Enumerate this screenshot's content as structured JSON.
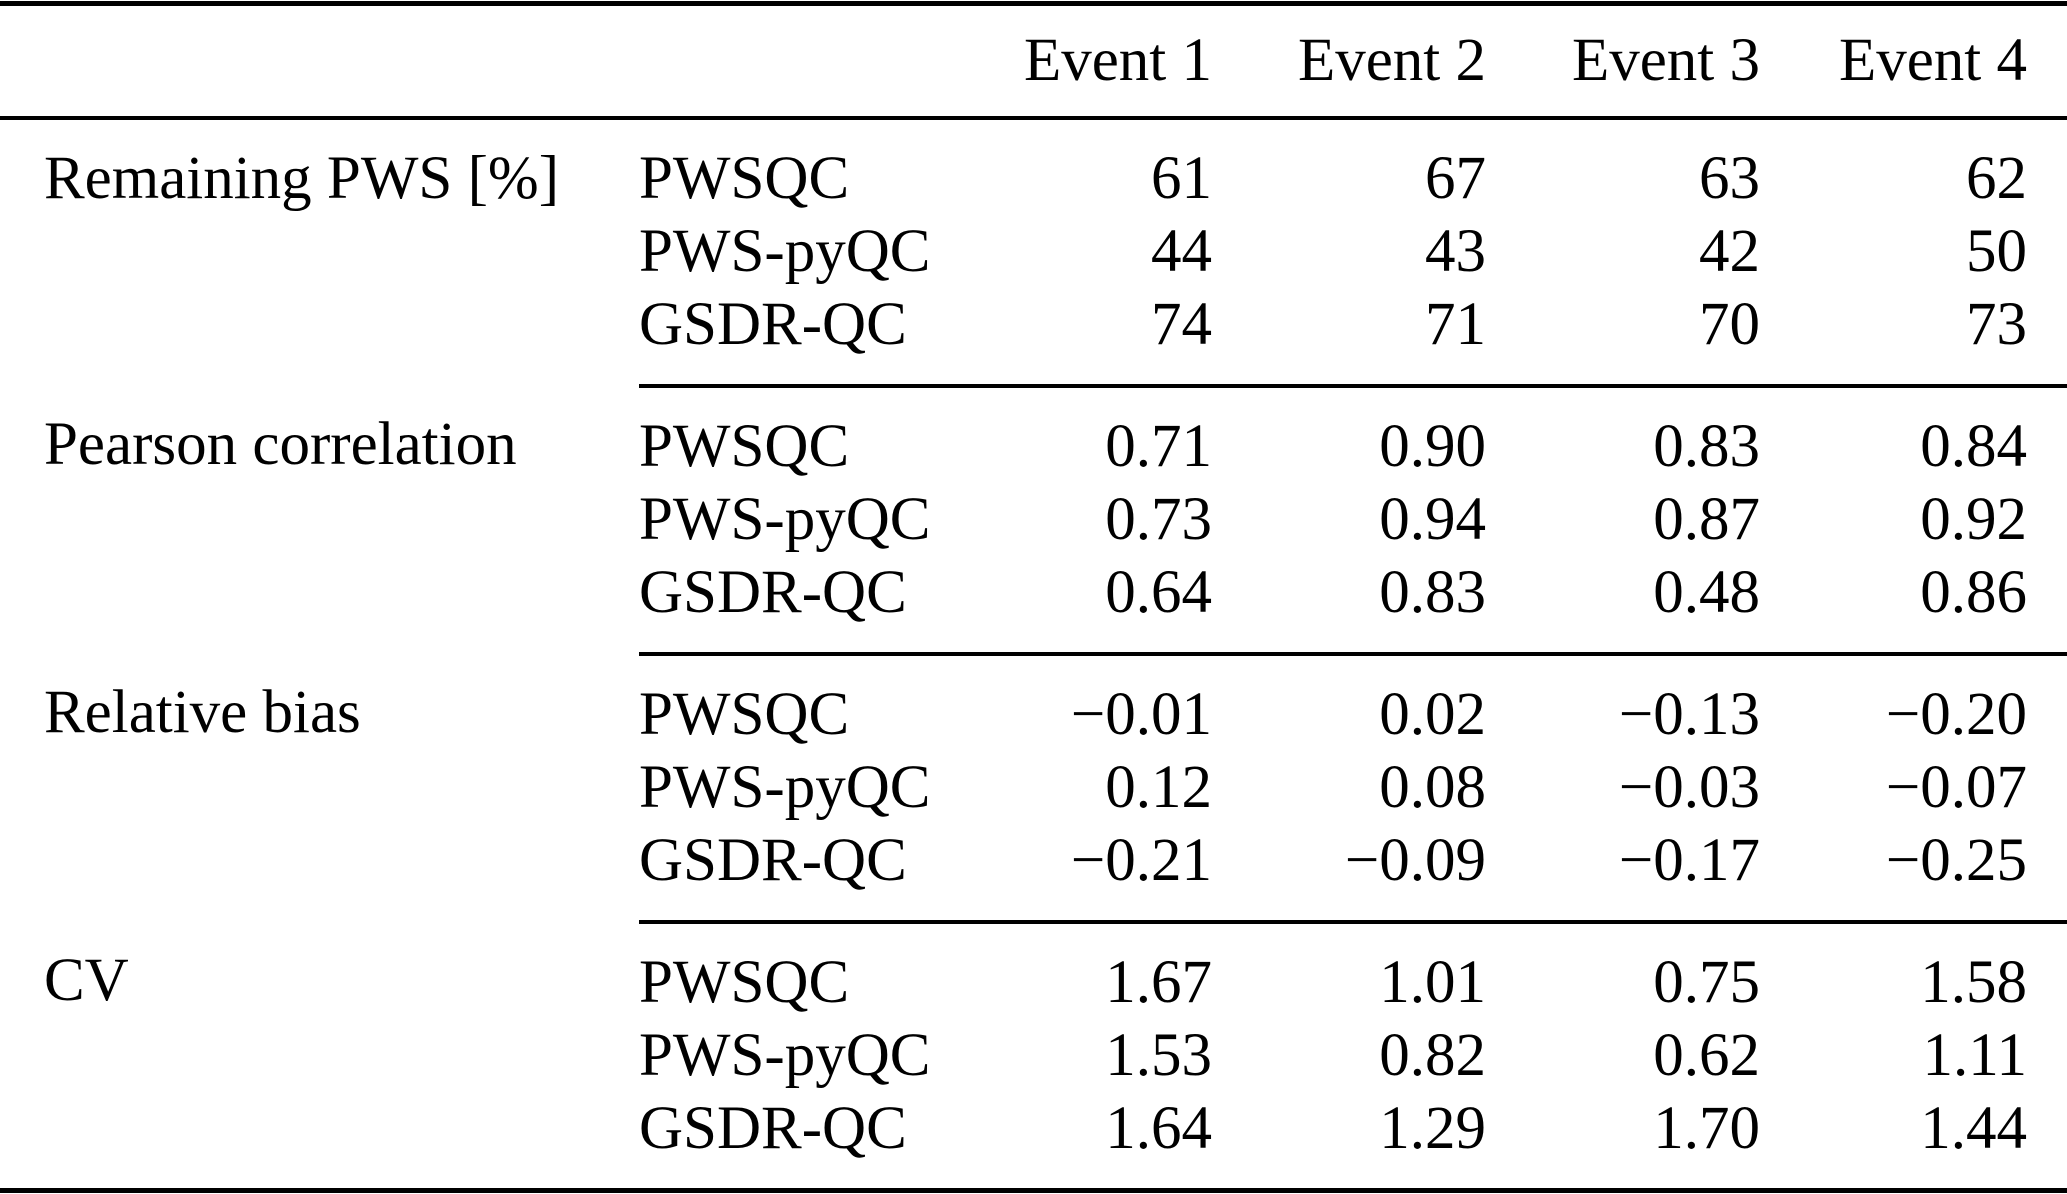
{
  "table": {
    "column_headers": [
      "Event 1",
      "Event 2",
      "Event 3",
      "Event 4"
    ],
    "sections": [
      {
        "label": "Remaining PWS [%]",
        "rows": [
          {
            "method": "PWSQC",
            "values": [
              "61",
              "67",
              "63",
              "62"
            ]
          },
          {
            "method": "PWS-pyQC",
            "values": [
              "44",
              "43",
              "42",
              "50"
            ]
          },
          {
            "method": "GSDR-QC",
            "values": [
              "74",
              "71",
              "70",
              "73"
            ]
          }
        ]
      },
      {
        "label": "Pearson correlation",
        "rows": [
          {
            "method": "PWSQC",
            "values": [
              "0.71",
              "0.90",
              "0.83",
              "0.84"
            ]
          },
          {
            "method": "PWS-pyQC",
            "values": [
              "0.73",
              "0.94",
              "0.87",
              "0.92"
            ]
          },
          {
            "method": "GSDR-QC",
            "values": [
              "0.64",
              "0.83",
              "0.48",
              "0.86"
            ]
          }
        ]
      },
      {
        "label": "Relative bias",
        "rows": [
          {
            "method": "PWSQC",
            "values": [
              "−0.01",
              "0.02",
              "−0.13",
              "−0.20"
            ]
          },
          {
            "method": "PWS-pyQC",
            "values": [
              "0.12",
              "0.08",
              "−0.03",
              "−0.07"
            ]
          },
          {
            "method": "GSDR-QC",
            "values": [
              "−0.21",
              "−0.09",
              "−0.17",
              "−0.25"
            ]
          }
        ]
      },
      {
        "label": "CV",
        "rows": [
          {
            "method": "PWSQC",
            "values": [
              "1.67",
              "1.01",
              "0.75",
              "1.58"
            ]
          },
          {
            "method": "PWS-pyQC",
            "values": [
              "1.53",
              "0.82",
              "0.62",
              "1.11"
            ]
          },
          {
            "method": "GSDR-QC",
            "values": [
              "1.64",
              "1.29",
              "1.70",
              "1.44"
            ]
          }
        ]
      }
    ]
  }
}
